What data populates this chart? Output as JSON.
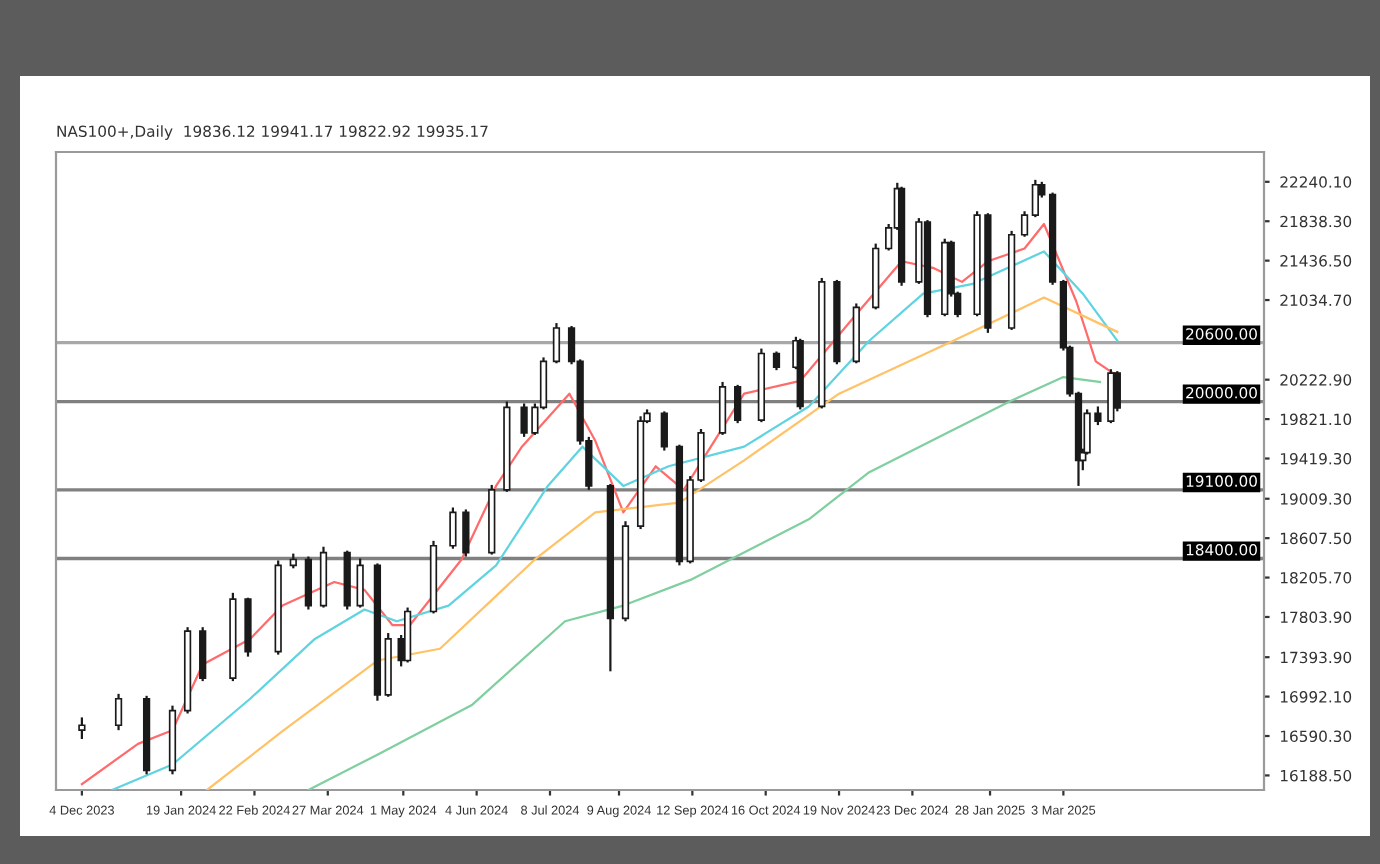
{
  "chart_data": {
    "type": "candlestick",
    "title": "NAS100+,Daily  19836.12 19941.17 19822.92 19935.17",
    "color": "#1a1a1a",
    "x": [
      "2023-12-04",
      "2023-12-21",
      "2024-01-03",
      "2024-01-15",
      "2024-01-22",
      "2024-01-29",
      "2024-02-12",
      "2024-02-19",
      "2024-03-04",
      "2024-03-11",
      "2024-03-18",
      "2024-03-25",
      "2024-04-05",
      "2024-04-11",
      "2024-04-19",
      "2024-04-24",
      "2024-04-30",
      "2024-05-03",
      "2024-05-15",
      "2024-05-24",
      "2024-05-30",
      "2024-06-11",
      "2024-06-18",
      "2024-06-26",
      "2024-07-01",
      "2024-07-05",
      "2024-07-11",
      "2024-07-18",
      "2024-07-22",
      "2024-07-26",
      "2024-08-05",
      "2024-08-12",
      "2024-08-19",
      "2024-08-22",
      "2024-08-30",
      "2024-09-06",
      "2024-09-11",
      "2024-09-16",
      "2024-09-26",
      "2024-10-03",
      "2024-10-14",
      "2024-10-21",
      "2024-10-30",
      "2024-11-01",
      "2024-11-11",
      "2024-11-18",
      "2024-11-27",
      "2024-12-06",
      "2024-12-12",
      "2024-12-16",
      "2024-12-18",
      "2024-12-26",
      "2024-12-30",
      "2025-01-07",
      "2025-01-10",
      "2025-01-13",
      "2025-01-22",
      "2025-01-27",
      "2025-02-07",
      "2025-02-13",
      "2025-02-18",
      "2025-02-21",
      "2025-02-26",
      "2025-03-03",
      "2025-03-06",
      "2025-03-10",
      "2025-03-12",
      "2025-03-14",
      "2025-03-19",
      "2025-03-25",
      "2025-03-28"
    ],
    "ohlc": [
      [
        16650,
        16780,
        16560,
        16700
      ],
      [
        16700,
        17020,
        16650,
        16970
      ],
      [
        16970,
        17000,
        16200,
        16240
      ],
      [
        16240,
        16900,
        16200,
        16850
      ],
      [
        16850,
        17700,
        16820,
        17660
      ],
      [
        17660,
        17700,
        17150,
        17180
      ],
      [
        17180,
        18050,
        17150,
        17985
      ],
      [
        17985,
        18000,
        17400,
        17450
      ],
      [
        17450,
        18380,
        17420,
        18330
      ],
      [
        18330,
        18450,
        18300,
        18390
      ],
      [
        18390,
        18420,
        17880,
        17920
      ],
      [
        17920,
        18520,
        17900,
        18460
      ],
      [
        18460,
        18480,
        17880,
        17920
      ],
      [
        17920,
        18400,
        17900,
        18330
      ],
      [
        18330,
        18350,
        16950,
        17010
      ],
      [
        17010,
        17640,
        16990,
        17580
      ],
      [
        17580,
        17620,
        17300,
        17360
      ],
      [
        17360,
        17900,
        17340,
        17860
      ],
      [
        17860,
        18580,
        17840,
        18530
      ],
      [
        18530,
        18920,
        18500,
        18870
      ],
      [
        18870,
        18900,
        18420,
        18460
      ],
      [
        18460,
        19150,
        18440,
        19100
      ],
      [
        19100,
        20000,
        19080,
        19940
      ],
      [
        19940,
        19980,
        19640,
        19680
      ],
      [
        19680,
        19980,
        19660,
        19940
      ],
      [
        19940,
        20450,
        19920,
        20410
      ],
      [
        20410,
        20800,
        20390,
        20750
      ],
      [
        20750,
        20770,
        20380,
        20410
      ],
      [
        20410,
        20430,
        19560,
        19600
      ],
      [
        19600,
        19640,
        19100,
        19140
      ],
      [
        19140,
        19160,
        17250,
        17790
      ],
      [
        17790,
        18780,
        17760,
        18730
      ],
      [
        18730,
        19850,
        18700,
        19800
      ],
      [
        19800,
        19920,
        19780,
        19880
      ],
      [
        19880,
        19900,
        19500,
        19540
      ],
      [
        19540,
        19560,
        18330,
        18370
      ],
      [
        18370,
        19240,
        18350,
        19200
      ],
      [
        19200,
        19720,
        19180,
        19680
      ],
      [
        19680,
        20200,
        19660,
        20150
      ],
      [
        20150,
        20170,
        19780,
        19810
      ],
      [
        19810,
        20540,
        19790,
        20490
      ],
      [
        20490,
        20510,
        20320,
        20350
      ],
      [
        20350,
        20660,
        20330,
        20620
      ],
      [
        20620,
        20640,
        19920,
        19950
      ],
      [
        19950,
        21260,
        19930,
        21220
      ],
      [
        21220,
        21240,
        20380,
        20410
      ],
      [
        20410,
        21000,
        20390,
        20960
      ],
      [
        20960,
        21610,
        20940,
        21560
      ],
      [
        21560,
        21810,
        21540,
        21770
      ],
      [
        21770,
        22230,
        21750,
        22170
      ],
      [
        22170,
        22190,
        21180,
        21220
      ],
      [
        21220,
        21870,
        21200,
        21830
      ],
      [
        21830,
        21850,
        20860,
        20890
      ],
      [
        20890,
        21660,
        20870,
        21620
      ],
      [
        21620,
        21640,
        21070,
        21100
      ],
      [
        21100,
        21120,
        20860,
        20890
      ],
      [
        20890,
        21940,
        20870,
        21900
      ],
      [
        21900,
        21920,
        20700,
        20750
      ],
      [
        20750,
        21740,
        20730,
        21700
      ],
      [
        21700,
        21940,
        21680,
        21900
      ],
      [
        21900,
        22260,
        21880,
        22210
      ],
      [
        22210,
        22240,
        22080,
        22110
      ],
      [
        22110,
        22130,
        21190,
        21220
      ],
      [
        21220,
        21240,
        20520,
        20550
      ],
      [
        20550,
        20570,
        20050,
        20080
      ],
      [
        20080,
        20100,
        19140,
        19400
      ],
      [
        19400,
        19520,
        19300,
        19480
      ],
      [
        19480,
        19920,
        19460,
        19880
      ],
      [
        19880,
        19950,
        19760,
        19800
      ],
      [
        19800,
        20330,
        19780,
        20290
      ],
      [
        20290,
        20310,
        19900,
        19935
      ]
    ],
    "series": [
      {
        "type": "line",
        "color": "#ff6b6b",
        "x": [
          "2023-12-04",
          "2023-12-30",
          "2024-01-15",
          "2024-01-29",
          "2024-02-20",
          "2024-03-06",
          "2024-03-30",
          "2024-04-13",
          "2024-04-26",
          "2024-05-04",
          "2024-05-28",
          "2024-06-13",
          "2024-06-25",
          "2024-07-17",
          "2024-07-29",
          "2024-08-11",
          "2024-08-26",
          "2024-09-08",
          "2024-10-06",
          "2024-11-01",
          "2024-11-27",
          "2024-12-18",
          "2025-01-02",
          "2025-01-15",
          "2025-01-27",
          "2025-02-13",
          "2025-02-22",
          "2025-03-09",
          "2025-03-18",
          "2025-03-26",
          "2025-03-28"
        ],
        "values": [
          16100,
          16510,
          16650,
          17320,
          17580,
          17920,
          18160,
          18080,
          17720,
          17720,
          18390,
          19140,
          19540,
          20080,
          19600,
          18870,
          19340,
          19100,
          20080,
          20210,
          20890,
          21430,
          21360,
          21220,
          21430,
          21560,
          21810,
          21020,
          20410,
          20290,
          20290
        ]
      },
      {
        "type": "line",
        "color": "#5fd3e0",
        "x": [
          "2023-12-18",
          "2024-01-15",
          "2024-02-20",
          "2024-03-21",
          "2024-04-13",
          "2024-04-28",
          "2024-05-22",
          "2024-06-13",
          "2024-07-07",
          "2024-07-23",
          "2024-08-11",
          "2024-09-01",
          "2024-10-06",
          "2024-11-05",
          "2024-12-03",
          "2024-12-28",
          "2025-01-20",
          "2025-02-22",
          "2025-03-12",
          "2025-03-28"
        ],
        "values": [
          16040,
          16300,
          16970,
          17580,
          17880,
          17760,
          17920,
          18330,
          19140,
          19540,
          19140,
          19340,
          19540,
          19950,
          20620,
          21100,
          21200,
          21530,
          21100,
          20620
        ]
      },
      {
        "type": "line",
        "color": "#ffc266",
        "x": [
          "2024-01-31",
          "2024-03-06",
          "2024-04-19",
          "2024-05-18",
          "2024-07-01",
          "2024-07-29",
          "2024-09-06",
          "2024-10-06",
          "2024-11-19",
          "2025-01-11",
          "2025-02-22",
          "2025-03-28"
        ],
        "values": [
          16040,
          16640,
          17360,
          17480,
          18390,
          18870,
          18970,
          19400,
          20080,
          20620,
          21060,
          20710
        ]
      },
      {
        "type": "line",
        "color": "#7fcf9f",
        "x": [
          "2024-03-18",
          "2024-04-19",
          "2024-06-02",
          "2024-07-15",
          "2024-08-11",
          "2024-09-12",
          "2024-11-05",
          "2024-12-03",
          "2025-01-08",
          "2025-02-07",
          "2025-03-03",
          "2025-03-20"
        ],
        "values": [
          16040,
          16400,
          16910,
          17760,
          17920,
          18190,
          18800,
          19280,
          19680,
          20010,
          20250,
          20200
        ]
      }
    ],
    "ref_lines": [
      {
        "axis": "y",
        "value": 20600,
        "label": "20600.00",
        "color": "#a8a8a8"
      },
      {
        "axis": "y",
        "value": 20000,
        "label": "20000.00",
        "color": "#808080"
      },
      {
        "axis": "y",
        "value": 19100,
        "label": "19100.00",
        "color": "#808080"
      },
      {
        "axis": "y",
        "value": 18400,
        "label": "18400.00",
        "color": "#808080"
      }
    ],
    "xlim": [
      "2023-11-22",
      "2025-06-04"
    ],
    "xticks": [
      {
        "value": "2023-12-04",
        "label": "4 Dec 2023"
      },
      {
        "value": "2024-01-19",
        "label": "19 Jan 2024"
      },
      {
        "value": "2024-02-22",
        "label": "22 Feb 2024"
      },
      {
        "value": "2024-03-27",
        "label": "27 Mar 2024"
      },
      {
        "value": "2024-05-01",
        "label": "1 May 2024"
      },
      {
        "value": "2024-06-04",
        "label": "4 Jun 2024"
      },
      {
        "value": "2024-07-08",
        "label": "8 Jul 2024"
      },
      {
        "value": "2024-08-09",
        "label": "9 Aug 2024"
      },
      {
        "value": "2024-09-12",
        "label": "12 Sep 2024"
      },
      {
        "value": "2024-10-16",
        "label": "16 Oct 2024"
      },
      {
        "value": "2024-11-19",
        "label": "19 Nov 2024"
      },
      {
        "value": "2024-12-23",
        "label": "23 Dec 2024"
      },
      {
        "value": "2025-01-28",
        "label": "28 Jan 2025"
      },
      {
        "value": "2025-03-03",
        "label": "3 Mar 2025"
      }
    ],
    "ylim": [
      16040,
      22544
    ],
    "yticks": [
      {
        "value": 16188.5,
        "label": "16188.50"
      },
      {
        "value": 16590.3,
        "label": "16590.30"
      },
      {
        "value": 16992.1,
        "label": "16992.10"
      },
      {
        "value": 17393.9,
        "label": "17393.90"
      },
      {
        "value": 17803.9,
        "label": "17803.90"
      },
      {
        "value": 18205.7,
        "label": "18205.70"
      },
      {
        "value": 18607.5,
        "label": "18607.50"
      },
      {
        "value": 19009.3,
        "label": "19009.30"
      },
      {
        "value": 19419.3,
        "label": "19419.30"
      },
      {
        "value": 19821.1,
        "label": "19821.10"
      },
      {
        "value": 20222.9,
        "label": "20222.90"
      },
      {
        "value": 21034.7,
        "label": "21034.70"
      },
      {
        "value": 21436.5,
        "label": "21436.50"
      },
      {
        "value": 21838.3,
        "label": "21838.30"
      },
      {
        "value": 22240.1,
        "label": "22240.10"
      }
    ],
    "grid": false,
    "legend": false
  }
}
